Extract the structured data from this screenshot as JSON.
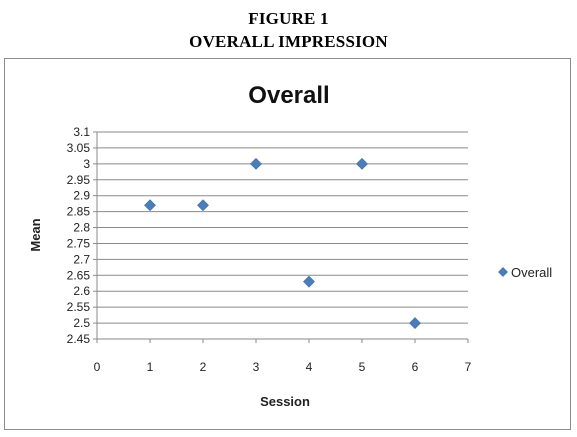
{
  "figure": {
    "caption_line1": "FIGURE 1",
    "caption_line2": "OVERALL IMPRESSION"
  },
  "chart_data": {
    "type": "scatter",
    "title": "Overall",
    "xlabel": "Session",
    "ylabel": "Mean",
    "xlim": [
      0,
      7
    ],
    "ylim": [
      2.45,
      3.1
    ],
    "xticks": [
      0,
      1,
      2,
      3,
      4,
      5,
      6,
      7
    ],
    "yticks": [
      2.45,
      2.5,
      2.55,
      2.6,
      2.65,
      2.7,
      2.75,
      2.8,
      2.85,
      2.9,
      2.95,
      3,
      3.05,
      3.1
    ],
    "grid": true,
    "legend_position": "right",
    "marker": "diamond",
    "series": [
      {
        "name": "Overall",
        "color": "#4a7ebb",
        "x": [
          1,
          2,
          3,
          4,
          5,
          6
        ],
        "y": [
          2.87,
          2.87,
          3,
          2.63,
          3,
          2.5
        ]
      }
    ]
  }
}
